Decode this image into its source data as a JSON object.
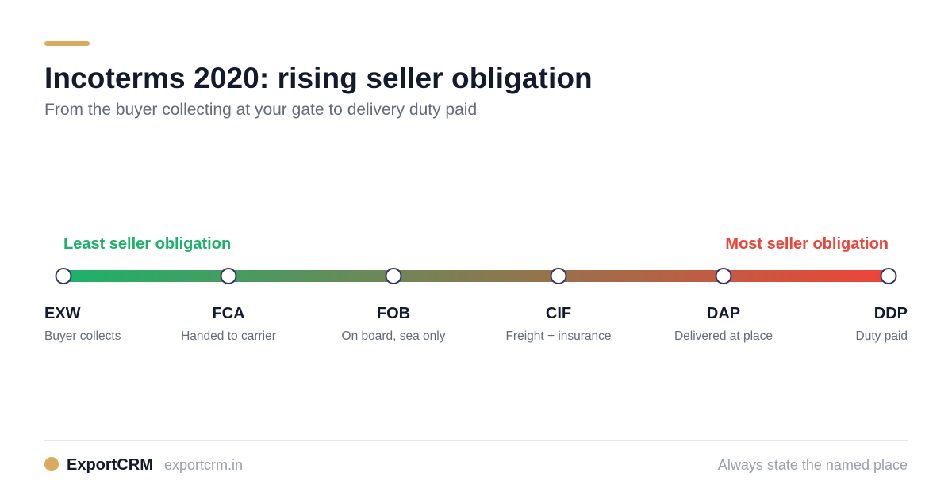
{
  "colors": {
    "accent": "#d9ab62",
    "start": "#1cb26b",
    "end": "#ee4438",
    "node_border": "#2e3566",
    "text_dark": "#141a2e",
    "text_muted": "#636b7c"
  },
  "header": {
    "title": "Incoterms 2020: rising seller obligation",
    "subtitle": "From the buyer collecting at your gate to delivery duty paid"
  },
  "scale": {
    "left_label": "Least seller obligation",
    "right_label": "Most seller obligation"
  },
  "terms": [
    {
      "code": "EXW",
      "desc": "Buyer collects"
    },
    {
      "code": "FCA",
      "desc": "Handed to carrier"
    },
    {
      "code": "FOB",
      "desc": "On board, sea only"
    },
    {
      "code": "CIF",
      "desc": "Freight + insurance"
    },
    {
      "code": "DAP",
      "desc": "Delivered at place"
    },
    {
      "code": "DDP",
      "desc": "Duty paid"
    }
  ],
  "footer": {
    "brand": "ExportCRM",
    "url": "exportcrm.in",
    "note": "Always state the named place"
  }
}
